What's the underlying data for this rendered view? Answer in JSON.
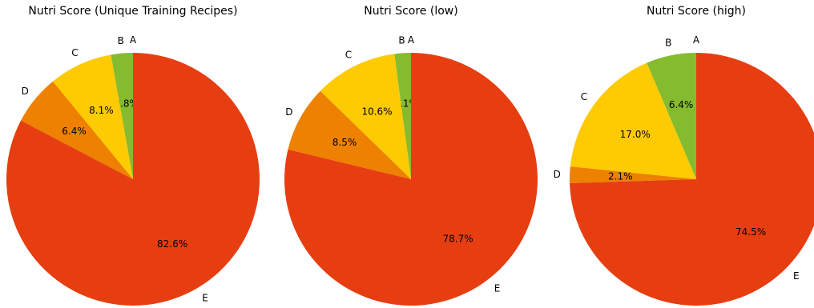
{
  "chart_data": [
    {
      "type": "pie",
      "title": "Nutri Score (Unique Training Recipes)",
      "categories": [
        "A",
        "B",
        "C",
        "D",
        "E"
      ],
      "values": [
        0.0,
        2.8,
        8.1,
        6.4,
        82.6
      ],
      "value_labels": [
        "0.0%",
        "2.8%",
        "8.1%",
        "6.4%",
        "82.6%"
      ],
      "colors": [
        "#038141",
        "#85bb2f",
        "#fecb02",
        "#ee8100",
        "#e63e11"
      ],
      "start_angle": "top, counter-clockwise"
    },
    {
      "type": "pie",
      "title": "Nutri Score (low)",
      "categories": [
        "A",
        "B",
        "C",
        "D",
        "E"
      ],
      "values": [
        0.0,
        2.1,
        10.6,
        8.5,
        78.7
      ],
      "value_labels": [
        "0.0%",
        "2.1%",
        "10.6%",
        "8.5%",
        "78.7%"
      ],
      "colors": [
        "#038141",
        "#85bb2f",
        "#fecb02",
        "#ee8100",
        "#e63e11"
      ],
      "start_angle": "top, counter-clockwise"
    },
    {
      "type": "pie",
      "title": "Nutri Score (high)",
      "categories": [
        "A",
        "B",
        "C",
        "D",
        "E"
      ],
      "values": [
        0.0,
        6.4,
        17.0,
        2.1,
        74.5
      ],
      "value_labels": [
        "0.0%",
        "6.4%",
        "17.0%",
        "2.1%",
        "74.5%"
      ],
      "colors": [
        "#038141",
        "#85bb2f",
        "#fecb02",
        "#ee8100",
        "#e63e11"
      ],
      "start_angle": "top, counter-clockwise"
    }
  ]
}
